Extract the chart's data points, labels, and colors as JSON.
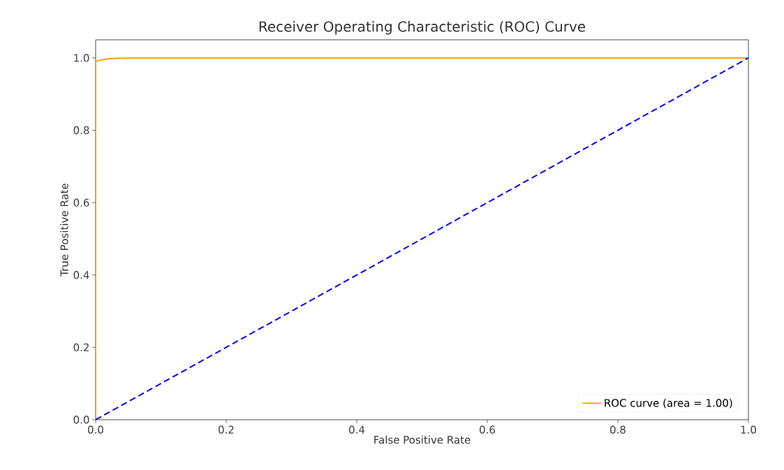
{
  "chart_data": {
    "type": "line",
    "title": "Receiver Operating Characteristic (ROC) Curve",
    "xlabel": "False Positive Rate",
    "ylabel": "True Positive Rate",
    "series": [
      {
        "name": "ROC curve (area = 1.00)",
        "color": "#ffa500",
        "line_style": "solid",
        "x": [
          0,
          0,
          0.01,
          0.02,
          0.05,
          1
        ],
        "values": [
          0,
          0.99,
          0.995,
          0.998,
          1.0,
          1.0
        ]
      },
      {
        "color": "#0000ff",
        "line_style": "dashed",
        "x": [
          0,
          1
        ],
        "values": [
          0,
          1
        ]
      }
    ],
    "xlim": [
      0,
      1
    ],
    "ylim": [
      0,
      1.05
    ],
    "xticks": [
      {
        "value": 0,
        "label": "0.0"
      },
      0.2,
      0.4,
      0.6,
      0.8,
      {
        "value": 1,
        "label": "1.0"
      }
    ],
    "yticks": [
      {
        "value": 0,
        "label": "0.0"
      },
      0.2,
      0.4,
      0.6,
      0.8,
      {
        "value": 1,
        "label": "1.0"
      }
    ],
    "grid": false,
    "legend": "bottom right",
    "marker": "none"
  }
}
